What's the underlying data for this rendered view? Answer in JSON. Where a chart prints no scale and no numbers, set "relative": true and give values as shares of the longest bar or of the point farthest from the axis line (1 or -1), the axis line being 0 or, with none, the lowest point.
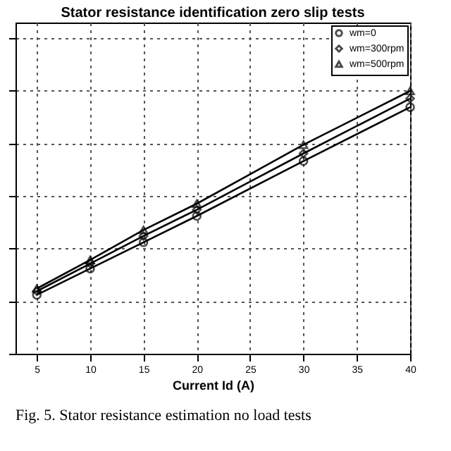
{
  "chart_data": {
    "type": "line",
    "title": "Stator resistance identification zero slip tests",
    "xlabel": "Current Id (A)",
    "x": [
      5,
      10,
      15,
      20,
      30,
      40
    ],
    "xlim": [
      3,
      40
    ],
    "xticks": [
      5,
      10,
      15,
      20,
      25,
      30,
      35,
      40
    ],
    "relative": true,
    "grid": true,
    "legend": "top right",
    "line_style": "solid",
    "series": [
      {
        "name": "wm=0",
        "color": "#000000",
        "marker": "circle",
        "values": [
          0.224,
          0.324,
          0.424,
          0.524,
          0.733,
          0.938
        ]
      },
      {
        "name": "wm=300rpm",
        "color": "#000000",
        "marker": "diamond",
        "values": [
          0.238,
          0.343,
          0.448,
          0.548,
          0.762,
          0.971
        ]
      },
      {
        "name": "wm=500rpm",
        "color": "#000000",
        "marker": "triangle",
        "values": [
          0.248,
          0.357,
          0.471,
          0.571,
          0.795,
          1.0
        ]
      }
    ],
    "annotations": [
      "Fig. 5. Stator resistance estimation no load tests"
    ]
  }
}
